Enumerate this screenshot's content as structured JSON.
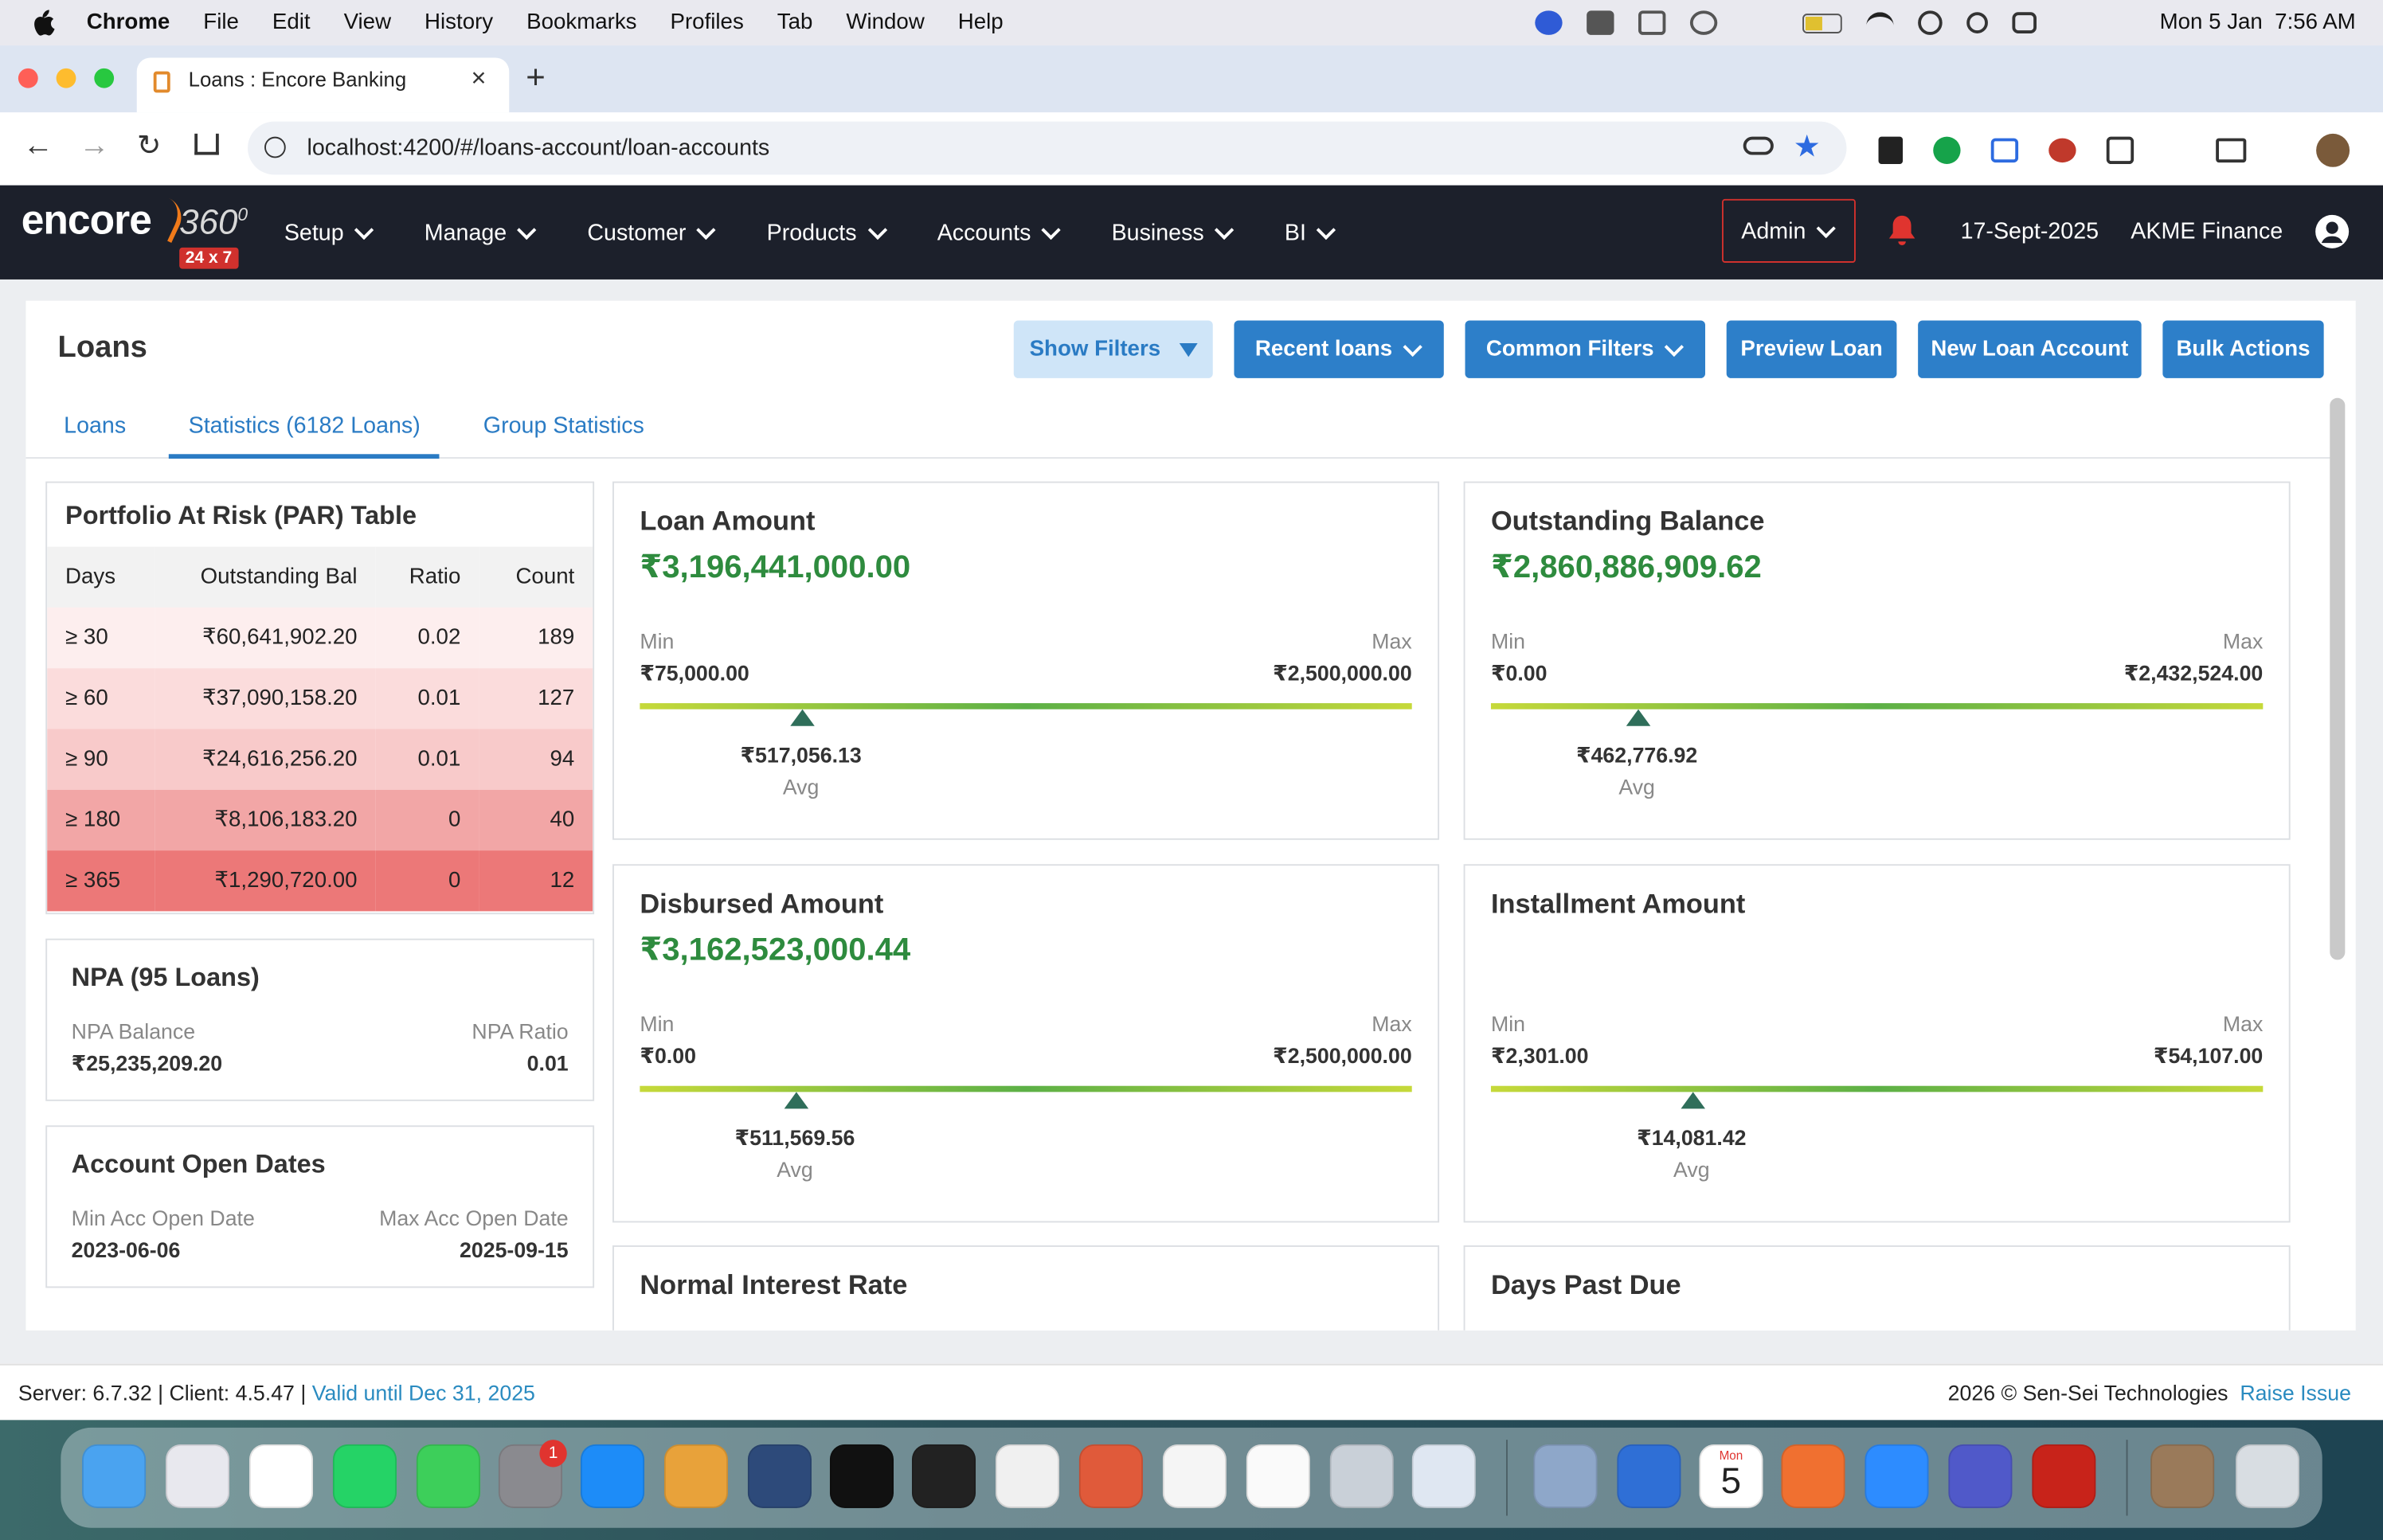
{
  "menu_bar": {
    "app": "Chrome",
    "items": [
      "File",
      "Edit",
      "View",
      "History",
      "Bookmarks",
      "Profiles",
      "Tab",
      "Window",
      "Help"
    ],
    "clock": "Mon 5 Jan  7:56 AM"
  },
  "browser": {
    "tab_title": "Loans : Encore Banking",
    "url": "localhost:4200/#/loans-account/loan-accounts"
  },
  "app_header": {
    "logo": "encore",
    "logo_suffix": "360",
    "logo_sup": "0",
    "badge": "24 x 7",
    "nav": [
      "Setup",
      "Manage",
      "Customer",
      "Products",
      "Accounts",
      "Business",
      "BI"
    ],
    "admin": "Admin",
    "date": "17-Sept-2025",
    "org": "AKME Finance"
  },
  "page": {
    "title": "Loans",
    "buttons": [
      "Show Filters",
      "Recent loans",
      "Common Filters",
      "Preview Loan",
      "New Loan Account",
      "Bulk Actions"
    ],
    "tabs": [
      "Loans",
      "Statistics (6182 Loans)",
      "Group Statistics"
    ]
  },
  "par_table": {
    "title": "Portfolio At Risk (PAR) Table",
    "columns": [
      "Days",
      "Outstanding Bal",
      "Ratio",
      "Count"
    ],
    "rows": [
      [
        "≥ 30",
        "₹60,641,902.20",
        "0.02",
        "189"
      ],
      [
        "≥ 60",
        "₹37,090,158.20",
        "0.01",
        "127"
      ],
      [
        "≥ 90",
        "₹24,616,256.20",
        "0.01",
        "94"
      ],
      [
        "≥ 180",
        "₹8,106,183.20",
        "0",
        "40"
      ],
      [
        "≥ 365",
        "₹1,290,720.00",
        "0",
        "12"
      ]
    ]
  },
  "npa": {
    "title": "NPA (95 Loans)",
    "balance_label": "NPA Balance",
    "balance": "₹25,235,209.20",
    "ratio_label": "NPA Ratio",
    "ratio": "0.01"
  },
  "open_dates": {
    "title": "Account Open Dates",
    "min_label": "Min Acc Open Date",
    "min": "2023-06-06",
    "max_label": "Max Acc Open Date",
    "max": "2025-09-15"
  },
  "cards": [
    {
      "title": "Loan Amount",
      "total": "₹3,196,441,000.00",
      "min_label": "Min",
      "min": "₹75,000.00",
      "max_label": "Max",
      "max": "₹2,500,000.00",
      "avg": "₹517,056.13",
      "avg_label": "Avg"
    },
    {
      "title": "Outstanding Balance",
      "total": "₹2,860,886,909.62",
      "min_label": "Min",
      "min": "₹0.00",
      "max_label": "Max",
      "max": "₹2,432,524.00",
      "avg": "₹462,776.92",
      "avg_label": "Avg"
    },
    {
      "title": "Disbursed Amount",
      "total": "₹3,162,523,000.44",
      "min_label": "Min",
      "min": "₹0.00",
      "max_label": "Max",
      "max": "₹2,500,000.00",
      "avg": "₹511,569.56",
      "avg_label": "Avg"
    },
    {
      "title": "Installment Amount",
      "min_label": "Min",
      "min": "₹2,301.00",
      "max_label": "Max",
      "max": "₹54,107.00",
      "avg": "₹14,081.42",
      "avg_label": "Avg"
    },
    {
      "title": "Normal Interest Rate"
    },
    {
      "title": "Days Past Due"
    }
  ],
  "footer": {
    "versions": "Server: 6.7.32 | Client: 4.5.47 |",
    "valid": "Valid until Dec 31, 2025",
    "copyright": "2026 © Sen-Sei Technologies",
    "raise": "Raise Issue"
  },
  "dock": {
    "settings_badge": "1",
    "calendar_month": "Mon",
    "calendar_day": "5"
  }
}
